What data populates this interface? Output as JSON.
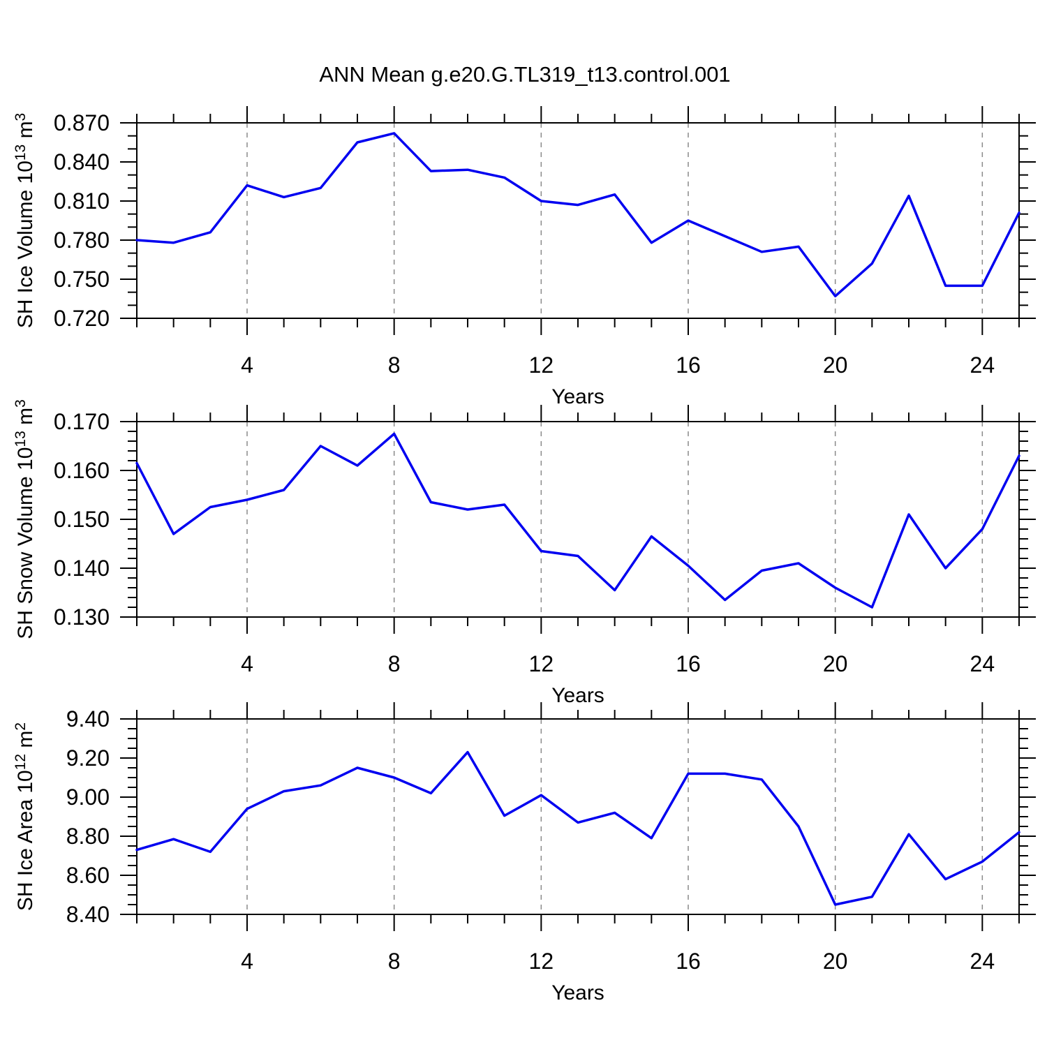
{
  "title": "ANN Mean g.e20.G.TL319_t13.control.001",
  "colors": {
    "line": "#0000f0",
    "axis": "#000000",
    "grid": "#8a8a8a",
    "background": "#ffffff"
  },
  "chart_data": [
    {
      "type": "line",
      "panel": 1,
      "ylabel": "SH Ice Volume 10^13 m^3",
      "ylabel_parts": [
        {
          "t": "SH Ice Volume 10",
          "sup": false
        },
        {
          "t": "13",
          "sup": true
        },
        {
          "t": " m",
          "sup": false
        },
        {
          "t": "3",
          "sup": true
        }
      ],
      "xlabel": "Years",
      "x": [
        1,
        2,
        3,
        4,
        5,
        6,
        7,
        8,
        9,
        10,
        11,
        12,
        13,
        14,
        15,
        16,
        17,
        18,
        19,
        20,
        21,
        22,
        23,
        24,
        25
      ],
      "values": [
        0.78,
        0.778,
        0.786,
        0.822,
        0.813,
        0.82,
        0.855,
        0.862,
        0.833,
        0.834,
        0.828,
        0.81,
        0.807,
        0.815,
        0.778,
        0.795,
        0.783,
        0.771,
        0.775,
        0.737,
        0.762,
        0.814,
        0.745,
        0.745,
        0.801
      ],
      "ylim": [
        0.72,
        0.87
      ],
      "ytick_major": 0.03,
      "ytick_minor": 0.01,
      "ytick_decimals": 3,
      "ytick_labels": [
        "0.720",
        "0.750",
        "0.780",
        "0.810",
        "0.840",
        "0.870"
      ],
      "xlim": [
        1,
        25
      ],
      "xticks_labeled": [
        4,
        8,
        12,
        16,
        20,
        24
      ],
      "xtick_minor_step": 1,
      "grid": "vertical-dashed-at-major-x",
      "legend": "none"
    },
    {
      "type": "line",
      "panel": 2,
      "ylabel": "SH Snow Volume 10^13 m^3",
      "ylabel_parts": [
        {
          "t": "SH Snow Volume 10",
          "sup": false
        },
        {
          "t": "13",
          "sup": true
        },
        {
          "t": " m",
          "sup": false
        },
        {
          "t": "3",
          "sup": true
        }
      ],
      "xlabel": "Years",
      "x": [
        1,
        2,
        3,
        4,
        5,
        6,
        7,
        8,
        9,
        10,
        11,
        12,
        13,
        14,
        15,
        16,
        17,
        18,
        19,
        20,
        21,
        22,
        23,
        24,
        25
      ],
      "values": [
        0.1615,
        0.147,
        0.1525,
        0.154,
        0.156,
        0.165,
        0.161,
        0.1675,
        0.1535,
        0.152,
        0.153,
        0.1435,
        0.1425,
        0.1355,
        0.1465,
        0.1405,
        0.1335,
        0.1395,
        0.141,
        0.136,
        0.132,
        0.151,
        0.14,
        0.148,
        0.163
      ],
      "ylim": [
        0.13,
        0.17
      ],
      "ytick_major": 0.01,
      "ytick_minor": 0.002,
      "ytick_decimals": 3,
      "ytick_labels": [
        "0.130",
        "0.140",
        "0.150",
        "0.160",
        "0.170"
      ],
      "xlim": [
        1,
        25
      ],
      "xticks_labeled": [
        4,
        8,
        12,
        16,
        20,
        24
      ],
      "xtick_minor_step": 1,
      "grid": "vertical-dashed-at-major-x",
      "legend": "none"
    },
    {
      "type": "line",
      "panel": 3,
      "ylabel": "SH Ice Area 10^12 m^2",
      "ylabel_parts": [
        {
          "t": "SH Ice Area 10",
          "sup": false
        },
        {
          "t": "12",
          "sup": true
        },
        {
          "t": " m",
          "sup": false
        },
        {
          "t": "2",
          "sup": true
        }
      ],
      "xlabel": "Years",
      "x": [
        1,
        2,
        3,
        4,
        5,
        6,
        7,
        8,
        9,
        10,
        11,
        12,
        13,
        14,
        15,
        16,
        17,
        18,
        19,
        20,
        21,
        22,
        23,
        24,
        25
      ],
      "values": [
        8.73,
        8.785,
        8.72,
        8.94,
        9.03,
        9.06,
        9.15,
        9.1,
        9.02,
        9.23,
        8.905,
        9.01,
        8.87,
        8.92,
        8.79,
        9.12,
        9.12,
        9.09,
        8.85,
        8.45,
        8.49,
        8.81,
        8.58,
        8.67,
        8.82
      ],
      "ylim": [
        8.4,
        9.4
      ],
      "ytick_major": 0.2,
      "ytick_minor": 0.05,
      "ytick_decimals": 2,
      "ytick_labels": [
        "8.40",
        "8.60",
        "8.80",
        "9.00",
        "9.20",
        "9.40"
      ],
      "xlim": [
        1,
        25
      ],
      "xticks_labeled": [
        4,
        8,
        12,
        16,
        20,
        24
      ],
      "xtick_minor_step": 1,
      "grid": "vertical-dashed-at-major-x",
      "legend": "none"
    }
  ]
}
